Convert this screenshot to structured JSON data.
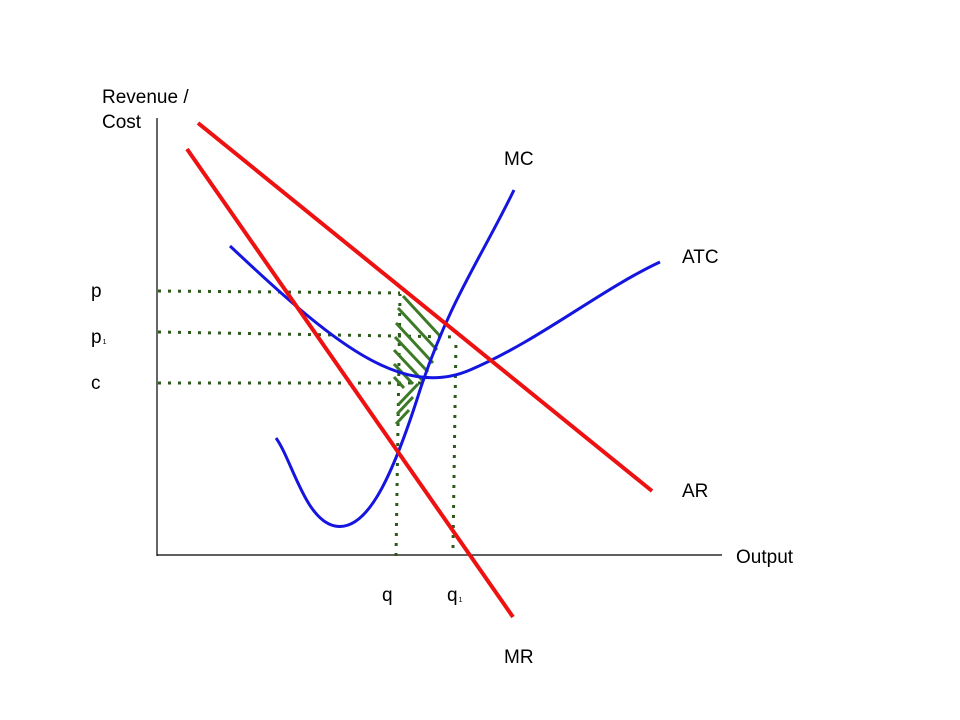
{
  "axes": {
    "y_label": "Revenue / Cost",
    "x_label": "Output"
  },
  "curves": {
    "mc": "MC",
    "atc": "ATC",
    "ar": "AR",
    "mr": "MR"
  },
  "price_levels": {
    "p": "p",
    "p1": "p",
    "p1_sub": "1",
    "c": "c"
  },
  "quantities": {
    "q": "q",
    "q1": "q",
    "q1_sub": "1"
  },
  "colors": {
    "revenue_curves": "#ee1111",
    "cost_curves": "#1515e0",
    "guide_lines": "#2d5a1b",
    "profit_hatch": "#3d7a28",
    "axes": "#000000"
  }
}
